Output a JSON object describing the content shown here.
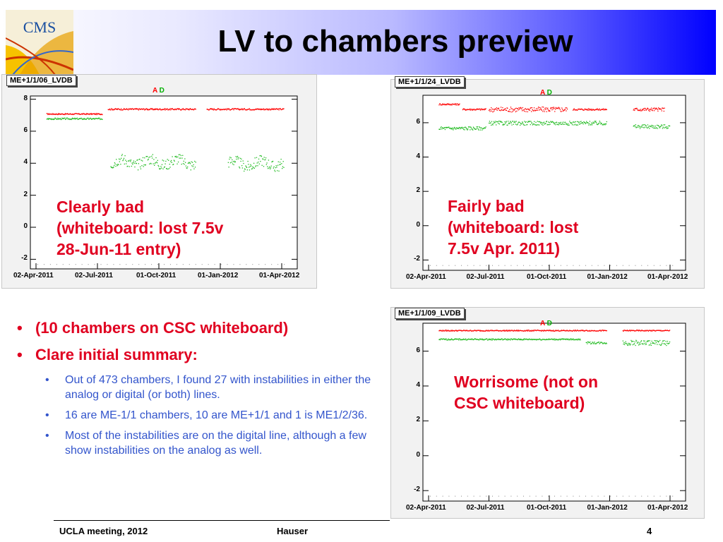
{
  "slide": {
    "title": "LV to chambers preview",
    "logo_text": "CMS"
  },
  "plots": [
    {
      "title": "ME+1/1/06_LVDB",
      "legend": {
        "a": "A",
        "d": "D"
      },
      "annotation": [
        "Clearly bad",
        "(whiteboard: lost 7.5v",
        "28-Jun-11 entry)"
      ]
    },
    {
      "title": "ME+1/1/24_LVDB",
      "legend": {
        "a": "A",
        "d": "D"
      },
      "annotation": [
        "Fairly bad",
        "(whiteboard: lost",
        "7.5v Apr. 2011)"
      ]
    },
    {
      "title": "ME+1/1/09_LVDB",
      "legend": {
        "a": "A",
        "d": "D"
      },
      "annotation": [
        "Worrisome (not on",
        "CSC whiteboard)"
      ]
    }
  ],
  "axis": {
    "x_ticks": [
      "02-Apr-2011",
      "02-Jul-2011",
      "01-Oct-2011",
      "01-Jan-2012",
      "01-Apr-2012"
    ],
    "y_ticks": [
      "8",
      "6",
      "4",
      "2",
      "0",
      "-2"
    ]
  },
  "bullets": {
    "main": [
      "(10 chambers on CSC whiteboard)",
      "Clare initial summary:"
    ],
    "sub": [
      "Out of 473 chambers, I found 27 with instabilities in either the analog or digital (or both) lines.",
      "16 are ME-1/1 chambers, 10 are ME+1/1 and 1 is ME1/2/36.",
      "Most of the instabilities are on the digital line, although a few show instabilities on the analog as well."
    ]
  },
  "footer": {
    "left": "UCLA meeting, 2012",
    "center": "Hauser",
    "page": "4"
  },
  "colors": {
    "analog": "#ff0000",
    "digital": "#22bb22",
    "annotation": "#e00020",
    "sub_bullet": "#3355cc",
    "title_gradient_end": "#0000ff"
  }
}
